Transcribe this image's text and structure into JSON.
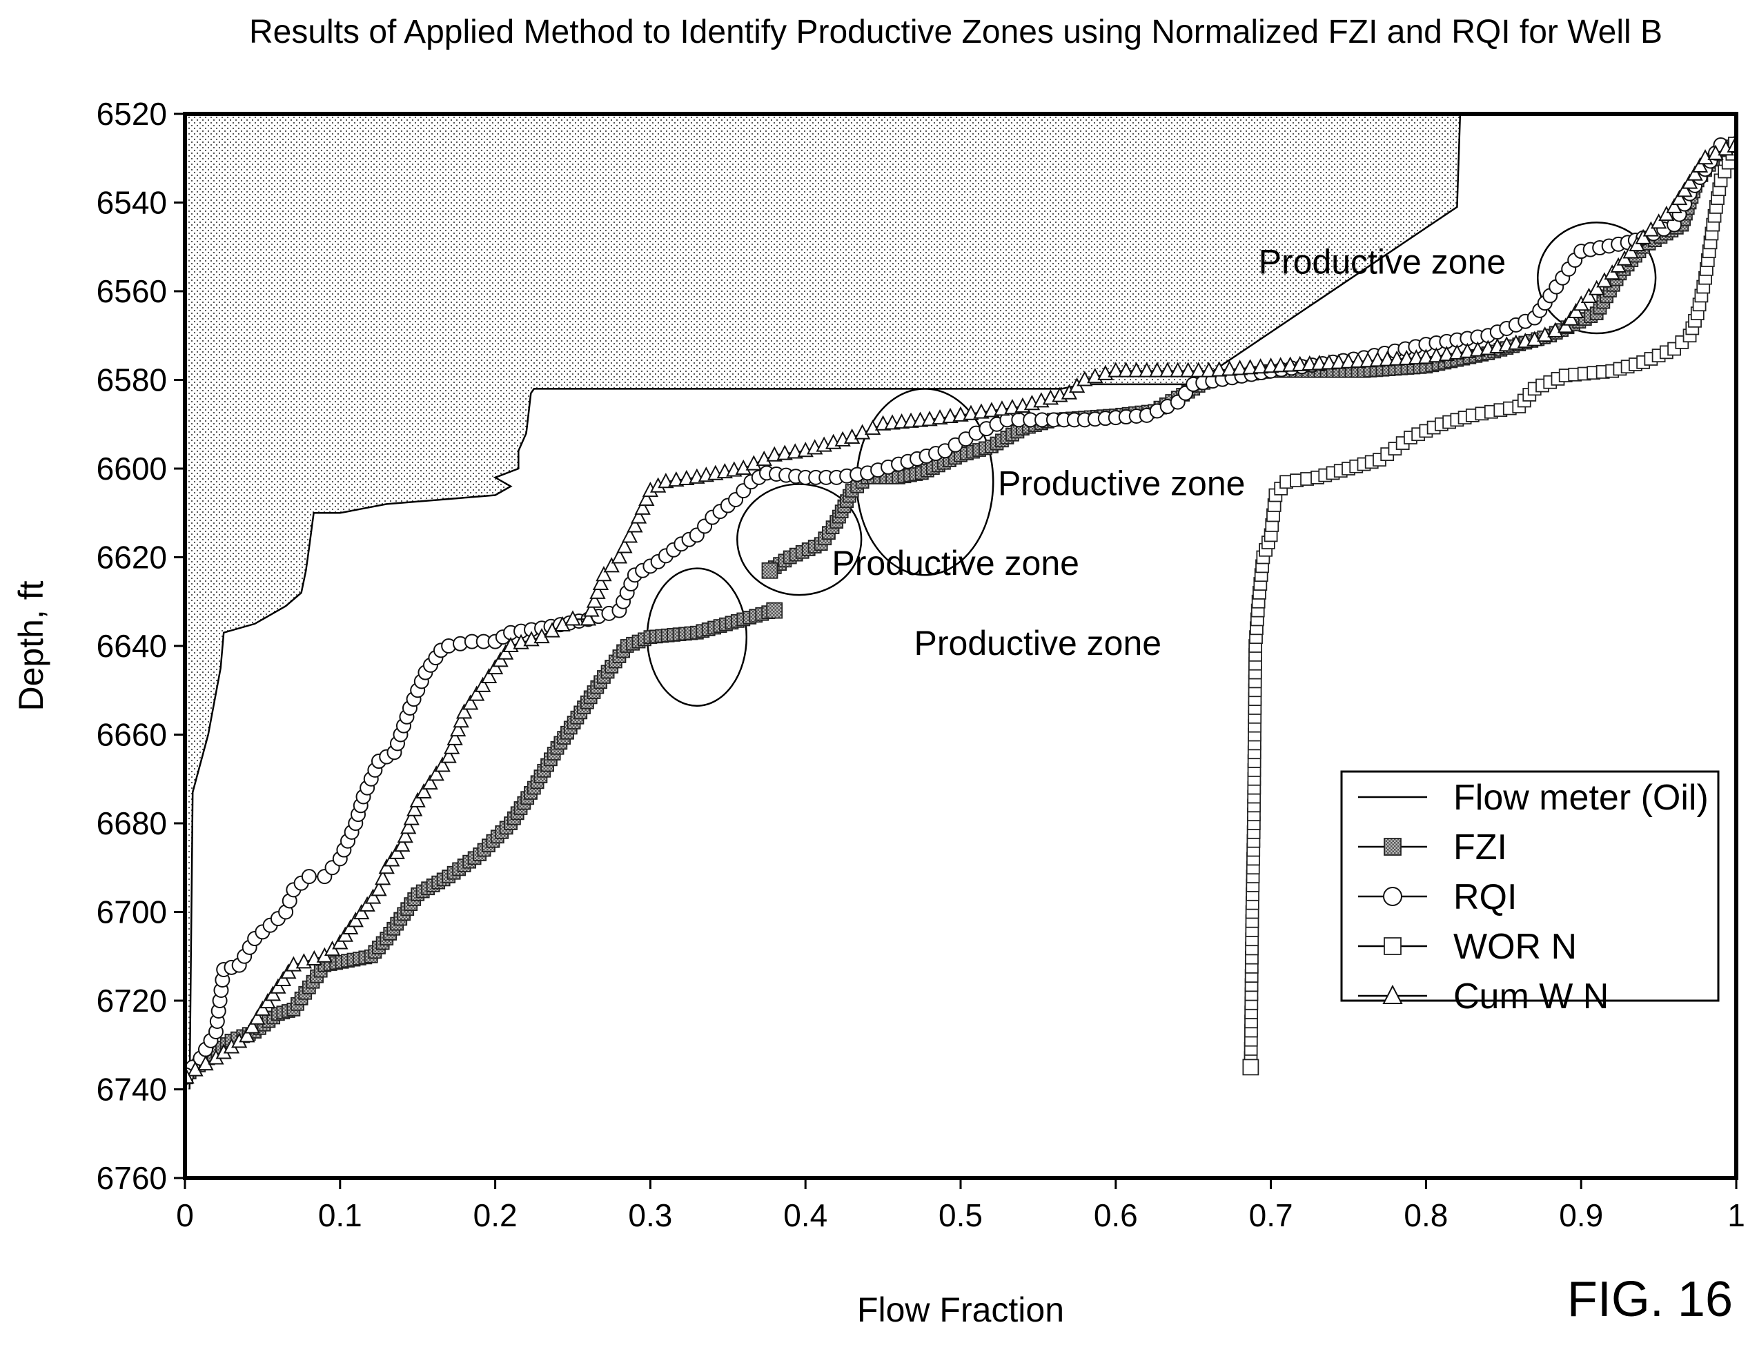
{
  "figure_label": "FIG. 16",
  "chart_data": {
    "type": "line",
    "title": "Results of Applied Method to Identify Productive Zones using Normalized FZI and RQI for Well B",
    "xlabel": "Flow Fraction",
    "ylabel": "Depth, ft",
    "xlim": [
      0,
      1
    ],
    "ylim": [
      6760,
      6520
    ],
    "y_inverted": true,
    "xticks": [
      "0",
      "0.1",
      "0.2",
      "0.3",
      "0.4",
      "0.5",
      "0.6",
      "0.7",
      "0.8",
      "0.9",
      "1"
    ],
    "yticks": [
      "6520",
      "6540",
      "6560",
      "6580",
      "6600",
      "6620",
      "6640",
      "6660",
      "6680",
      "6700",
      "6720",
      "6740",
      "6760"
    ],
    "grid": false,
    "legend_position": "right-middle",
    "series": [
      {
        "name": "Flow meter (Oil)",
        "marker": "none",
        "points": [
          [
            0.003,
            6740
          ],
          [
            0.005,
            6673
          ],
          [
            0.015,
            6660
          ],
          [
            0.023,
            6645
          ],
          [
            0.025,
            6637
          ],
          [
            0.045,
            6635
          ],
          [
            0.065,
            6631
          ],
          [
            0.075,
            6628
          ],
          [
            0.078,
            6623
          ],
          [
            0.08,
            6618
          ],
          [
            0.083,
            6610
          ],
          [
            0.1,
            6610
          ],
          [
            0.115,
            6609
          ],
          [
            0.13,
            6608
          ],
          [
            0.165,
            6607
          ],
          [
            0.2,
            6606
          ],
          [
            0.2,
            6606
          ],
          [
            0.21,
            6604
          ],
          [
            0.2,
            6602
          ],
          [
            0.215,
            6600
          ],
          [
            0.215,
            6596
          ],
          [
            0.22,
            6592
          ],
          [
            0.223,
            6583
          ],
          [
            0.225,
            6582
          ],
          [
            0.45,
            6582
          ],
          [
            0.565,
            6582
          ],
          [
            0.58,
            6581
          ],
          [
            0.65,
            6581
          ],
          [
            0.82,
            6541
          ],
          [
            0.822,
            6520
          ],
          [
            0,
            6520
          ],
          [
            0,
            6740
          ]
        ]
      },
      {
        "name": "FZI",
        "marker": "square-hatched",
        "points": [
          [
            0,
            6737
          ],
          [
            0.015,
            6733
          ],
          [
            0.03,
            6729
          ],
          [
            0.045,
            6727
          ],
          [
            0.06,
            6723
          ],
          [
            0.07,
            6722
          ],
          [
            0.08,
            6717
          ],
          [
            0.09,
            6712
          ],
          [
            0.12,
            6710
          ],
          [
            0.13,
            6706
          ],
          [
            0.15,
            6696
          ],
          [
            0.17,
            6692
          ],
          [
            0.19,
            6687
          ],
          [
            0.21,
            6680
          ],
          [
            0.225,
            6672
          ],
          [
            0.24,
            6663
          ],
          [
            0.255,
            6655
          ],
          [
            0.27,
            6647
          ],
          [
            0.285,
            6640
          ],
          [
            0.3,
            6638
          ],
          [
            0.33,
            6637
          ],
          [
            0.36,
            6634
          ],
          [
            0.38,
            6632
          ]
        ]
      },
      {
        "name": "FZI",
        "marker": "square-hatched",
        "points": [
          [
            0.377,
            6623
          ],
          [
            0.39,
            6620
          ],
          [
            0.41,
            6617
          ],
          [
            0.42,
            6612
          ],
          [
            0.43,
            6605
          ],
          [
            0.44,
            6602
          ],
          [
            0.46,
            6602
          ],
          [
            0.475,
            6601
          ],
          [
            0.5,
            6597
          ],
          [
            0.52,
            6595
          ],
          [
            0.54,
            6591
          ],
          [
            0.56,
            6589
          ],
          [
            0.6,
            6588
          ],
          [
            0.625,
            6587
          ],
          [
            0.64,
            6584
          ],
          [
            0.66,
            6580
          ],
          [
            0.7,
            6578
          ],
          [
            0.74,
            6578
          ],
          [
            0.76,
            6578
          ],
          [
            0.8,
            6577
          ],
          [
            0.84,
            6574
          ],
          [
            0.86,
            6572
          ],
          [
            0.88,
            6570
          ],
          [
            0.91,
            6565
          ],
          [
            0.925,
            6556
          ],
          [
            0.94,
            6550
          ],
          [
            0.955,
            6547
          ],
          [
            0.965,
            6545
          ],
          [
            0.975,
            6535
          ],
          [
            0.99,
            6528
          ],
          [
            1,
            6527
          ]
        ]
      },
      {
        "name": "RQI",
        "marker": "circle-open",
        "points": [
          [
            0,
            6737
          ],
          [
            0.01,
            6733
          ],
          [
            0.02,
            6727
          ],
          [
            0.025,
            6713
          ],
          [
            0.035,
            6712
          ],
          [
            0.045,
            6706
          ],
          [
            0.055,
            6703
          ],
          [
            0.065,
            6700
          ],
          [
            0.07,
            6695
          ],
          [
            0.08,
            6692
          ],
          [
            0.09,
            6692
          ],
          [
            0.1,
            6688
          ],
          [
            0.11,
            6680
          ],
          [
            0.115,
            6674
          ],
          [
            0.125,
            6666
          ],
          [
            0.135,
            6664
          ],
          [
            0.145,
            6654
          ],
          [
            0.155,
            6646
          ],
          [
            0.165,
            6641
          ],
          [
            0.17,
            6640
          ],
          [
            0.185,
            6639
          ],
          [
            0.2,
            6639
          ],
          [
            0.21,
            6637
          ],
          [
            0.23,
            6636
          ],
          [
            0.26,
            6634
          ],
          [
            0.28,
            6632
          ],
          [
            0.29,
            6624
          ],
          [
            0.305,
            6621
          ],
          [
            0.32,
            6617
          ],
          [
            0.33,
            6615
          ],
          [
            0.34,
            6611
          ],
          [
            0.355,
            6607
          ],
          [
            0.365,
            6603
          ],
          [
            0.375,
            6601
          ],
          [
            0.4,
            6602
          ],
          [
            0.42,
            6602
          ],
          [
            0.44,
            6601
          ],
          [
            0.46,
            6599
          ],
          [
            0.49,
            6596
          ],
          [
            0.51,
            6592
          ],
          [
            0.53,
            6589
          ],
          [
            0.56,
            6589
          ],
          [
            0.58,
            6589
          ],
          [
            0.62,
            6588
          ],
          [
            0.64,
            6585
          ],
          [
            0.65,
            6581
          ],
          [
            0.7,
            6578
          ],
          [
            0.72,
            6577
          ],
          [
            0.76,
            6575
          ],
          [
            0.8,
            6572
          ],
          [
            0.84,
            6570
          ],
          [
            0.87,
            6566
          ],
          [
            0.88,
            6561
          ],
          [
            0.9,
            6551
          ],
          [
            0.93,
            6549
          ],
          [
            0.94,
            6548
          ],
          [
            0.96,
            6545
          ],
          [
            0.97,
            6538
          ],
          [
            0.99,
            6527
          ],
          [
            1,
            6527
          ]
        ]
      },
      {
        "name": "WOR N",
        "marker": "square-open",
        "points": [
          [
            0.687,
            6735
          ],
          [
            0.688,
            6700
          ],
          [
            0.689,
            6680
          ],
          [
            0.69,
            6640
          ],
          [
            0.692,
            6630
          ],
          [
            0.695,
            6620
          ],
          [
            0.7,
            6615
          ],
          [
            0.703,
            6606
          ],
          [
            0.71,
            6603
          ],
          [
            0.73,
            6602
          ],
          [
            0.75,
            6600
          ],
          [
            0.77,
            6598
          ],
          [
            0.79,
            6593
          ],
          [
            0.81,
            6590
          ],
          [
            0.83,
            6588
          ],
          [
            0.86,
            6586
          ],
          [
            0.87,
            6582
          ],
          [
            0.89,
            6579
          ],
          [
            0.92,
            6578
          ],
          [
            0.94,
            6576
          ],
          [
            0.96,
            6573
          ],
          [
            0.97,
            6570
          ],
          [
            0.975,
            6565
          ],
          [
            0.98,
            6557
          ],
          [
            0.985,
            6545
          ],
          [
            0.99,
            6535
          ],
          [
            1,
            6527
          ]
        ]
      },
      {
        "name": "Cum W N",
        "marker": "triangle-open",
        "points": [
          [
            0,
            6737
          ],
          [
            0.02,
            6733
          ],
          [
            0.04,
            6728
          ],
          [
            0.05,
            6722
          ],
          [
            0.06,
            6717
          ],
          [
            0.07,
            6712
          ],
          [
            0.09,
            6710
          ],
          [
            0.1,
            6707
          ],
          [
            0.11,
            6702
          ],
          [
            0.125,
            6695
          ],
          [
            0.13,
            6690
          ],
          [
            0.14,
            6685
          ],
          [
            0.15,
            6675
          ],
          [
            0.17,
            6665
          ],
          [
            0.18,
            6655
          ],
          [
            0.2,
            6645
          ],
          [
            0.21,
            6640
          ],
          [
            0.23,
            6638
          ],
          [
            0.25,
            6634
          ],
          [
            0.26,
            6634
          ],
          [
            0.27,
            6624
          ],
          [
            0.28,
            6620
          ],
          [
            0.29,
            6613
          ],
          [
            0.3,
            6605
          ],
          [
            0.31,
            6603
          ],
          [
            0.33,
            6602
          ],
          [
            0.36,
            6600
          ],
          [
            0.38,
            6597
          ],
          [
            0.4,
            6596
          ],
          [
            0.43,
            6593
          ],
          [
            0.45,
            6590
          ],
          [
            0.48,
            6589
          ],
          [
            0.5,
            6588
          ],
          [
            0.54,
            6586
          ],
          [
            0.57,
            6583
          ],
          [
            0.58,
            6580
          ],
          [
            0.6,
            6578
          ],
          [
            0.64,
            6578
          ],
          [
            0.66,
            6578
          ],
          [
            0.7,
            6577
          ],
          [
            0.75,
            6576
          ],
          [
            0.8,
            6575
          ],
          [
            0.84,
            6573
          ],
          [
            0.87,
            6571
          ],
          [
            0.89,
            6568
          ],
          [
            0.9,
            6563
          ],
          [
            0.92,
            6556
          ],
          [
            0.94,
            6548
          ],
          [
            0.96,
            6541
          ],
          [
            0.98,
            6530
          ],
          [
            1,
            6527
          ]
        ]
      }
    ],
    "annotations": [
      {
        "text": "Productive zone",
        "x": 0.47,
        "y": 6642,
        "ellipse": {
          "cx": 0.33,
          "cy": 6638,
          "rx": 0.032,
          "ry": 15.5
        }
      },
      {
        "text": "Productive zone",
        "x": 0.417,
        "y": 6624,
        "ellipse": {
          "cx": 0.396,
          "cy": 6616,
          "rx": 0.04,
          "ry": 12.5
        }
      },
      {
        "text": "Productive zone",
        "x": 0.524,
        "y": 6606,
        "ellipse": {
          "cx": 0.477,
          "cy": 6603,
          "rx": 0.044,
          "ry": 21
        }
      },
      {
        "text": "Productive zone",
        "x": 0.692,
        "y": 6556,
        "ellipse": {
          "cx": 0.91,
          "cy": 6557,
          "rx": 0.038,
          "ry": 12.5
        }
      }
    ]
  }
}
